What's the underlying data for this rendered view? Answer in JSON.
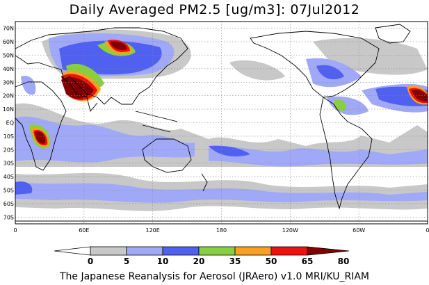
{
  "title": "Daily Averaged PM2.5 [ug/m3]: 07Jul2012",
  "credit": "The Japanese Reanalysis for Aerosol (JRAero) v1.0 MRI/KU_RIAM",
  "lat_labels": [
    "70N",
    "60N",
    "50N",
    "40N",
    "30N",
    "20N",
    "10N",
    "EQ",
    "10S",
    "20S",
    "30S",
    "40S",
    "50S",
    "60S",
    "70S"
  ],
  "lat_values": [
    70,
    60,
    50,
    40,
    30,
    20,
    10,
    0,
    -10,
    -20,
    -30,
    -40,
    -50,
    -60,
    -70
  ],
  "lon_labels": [
    "0",
    "60E",
    "120E",
    "180",
    "120W",
    "60W",
    "0"
  ],
  "lon_values": [
    0,
    60,
    120,
    180,
    240,
    300,
    360
  ],
  "colorbar": {
    "levels": [
      "0",
      "5",
      "10",
      "20",
      "35",
      "50",
      "65",
      "80"
    ],
    "colors": [
      "#ffffff",
      "#c8c8c8",
      "#a0a8f8",
      "#5060f0",
      "#88d040",
      "#f8a020",
      "#f01010",
      "#800000"
    ]
  }
}
